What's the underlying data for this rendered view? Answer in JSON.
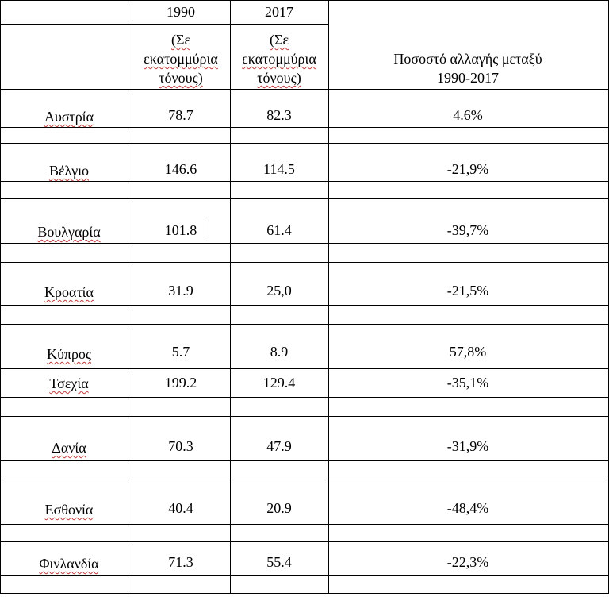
{
  "header": {
    "col1990_year": "1990",
    "col2017_year": "2017",
    "unit_line1": "(Σε",
    "unit_line2": "εκατομμύρια",
    "unit_line3": "τόνους)",
    "change_line1": "Ποσοστό αλλαγής μεταξύ",
    "change_line2": "1990-2017"
  },
  "rows": [
    {
      "country": "Αυστρία",
      "v1990": "78.7",
      "v2017": "82.3",
      "change": "4.6%"
    },
    {
      "country": "Βέλγιο",
      "v1990": "146.6",
      "v2017": "114.5",
      "change": "-21,9%"
    },
    {
      "country": "Βουλγαρία",
      "v1990": "101.8",
      "v2017": "61.4",
      "change": "-39,7%"
    },
    {
      "country": "Κροατία",
      "v1990": "31.9",
      "v2017": "25,0",
      "change": "-21,5%"
    },
    {
      "country": "Κύπρος",
      "v1990": "5.7",
      "v2017": "8.9",
      "change": "57,8%"
    },
    {
      "country": "Τσεχία",
      "v1990": "199.2",
      "v2017": "129.4",
      "change": "-35,1%"
    },
    {
      "country": "Δανία",
      "v1990": "70.3",
      "v2017": "47.9",
      "change": "-31,9%"
    },
    {
      "country": "Εσθονία",
      "v1990": "40.4",
      "v2017": "20.9",
      "change": "-48,4%"
    },
    {
      "country": "Φινλανδία",
      "v1990": "71.3",
      "v2017": "55.4",
      "change": "-22,3%"
    }
  ]
}
